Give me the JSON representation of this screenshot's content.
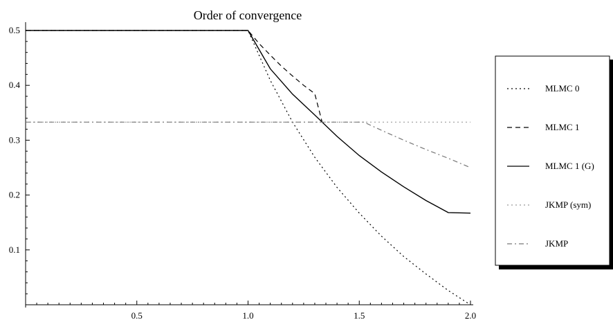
{
  "chart_data": {
    "type": "line",
    "title": "Order of convergence",
    "xlabel": "",
    "ylabel": "",
    "xlim": [
      0,
      2.0
    ],
    "ylim": [
      0,
      0.5
    ],
    "x_ticks": [
      "0.5",
      "1.0",
      "1.5",
      "2.0"
    ],
    "y_ticks": [
      "0.1",
      "0.2",
      "0.3",
      "0.4",
      "0.5"
    ],
    "grid": false,
    "legend_position": "right",
    "series": [
      {
        "name": "MLMC 0",
        "style": "dotted",
        "color": "#000000",
        "points": [
          [
            0.0,
            0.5
          ],
          [
            1.0,
            0.5
          ],
          [
            1.1,
            0.409
          ],
          [
            1.2,
            0.333
          ],
          [
            1.3,
            0.269
          ],
          [
            1.4,
            0.214
          ],
          [
            1.5,
            0.167
          ],
          [
            1.6,
            0.125
          ],
          [
            1.7,
            0.088
          ],
          [
            1.8,
            0.056
          ],
          [
            1.9,
            0.026
          ],
          [
            2.0,
            0.0
          ]
        ]
      },
      {
        "name": "MLMC 1",
        "style": "dashed",
        "color": "#000000",
        "points": [
          [
            0.0,
            0.5
          ],
          [
            1.0,
            0.5
          ],
          [
            1.05,
            0.476
          ],
          [
            1.1,
            0.455
          ],
          [
            1.15,
            0.435
          ],
          [
            1.2,
            0.417
          ],
          [
            1.25,
            0.4
          ],
          [
            1.3,
            0.385
          ],
          [
            1.333,
            0.333
          ]
        ]
      },
      {
        "name": "MLMC 1 (G)",
        "style": "solid",
        "color": "#000000",
        "points": [
          [
            0.0,
            0.5
          ],
          [
            1.0,
            0.5
          ],
          [
            1.1,
            0.43
          ],
          [
            1.2,
            0.384
          ],
          [
            1.3,
            0.346
          ],
          [
            1.4,
            0.307
          ],
          [
            1.5,
            0.272
          ],
          [
            1.6,
            0.242
          ],
          [
            1.7,
            0.215
          ],
          [
            1.8,
            0.19
          ],
          [
            1.9,
            0.168
          ],
          [
            2.0,
            0.167
          ]
        ]
      },
      {
        "name": "JKMP (sym)",
        "style": "dotted",
        "color": "#999999",
        "points": [
          [
            0.0,
            0.333
          ],
          [
            2.0,
            0.333
          ]
        ]
      },
      {
        "name": "JKMP",
        "style": "dashdot",
        "color": "#777777",
        "points": [
          [
            0.0,
            0.333
          ],
          [
            1.52,
            0.333
          ],
          [
            1.6,
            0.318
          ],
          [
            1.7,
            0.3
          ],
          [
            1.8,
            0.283
          ],
          [
            1.9,
            0.267
          ],
          [
            2.0,
            0.25
          ]
        ]
      }
    ]
  }
}
